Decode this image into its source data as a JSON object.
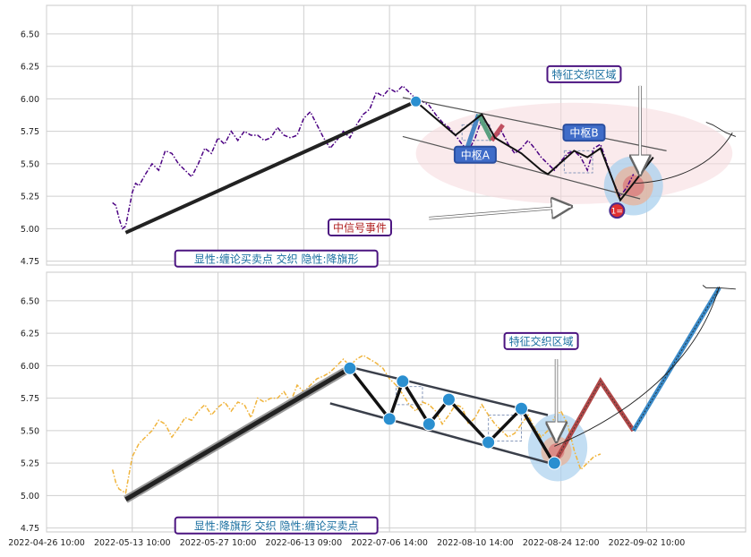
{
  "chart_data": [
    {
      "type": "line",
      "panel": "top",
      "ylim": [
        4.72,
        6.72
      ],
      "yticks": [
        "4.75",
        "5.00",
        "5.25",
        "5.50",
        "5.75",
        "6.00",
        "6.25",
        "6.50"
      ],
      "grid": true,
      "price_color": "#4b0082",
      "price_style": "dash-dot",
      "price": [
        [
          0.0,
          5.2
        ],
        [
          0.5,
          5.18
        ],
        [
          1.0,
          5.08
        ],
        [
          1.5,
          5.0
        ],
        [
          2.0,
          5.02
        ],
        [
          2.5,
          5.15
        ],
        [
          3.0,
          5.28
        ],
        [
          3.5,
          5.35
        ],
        [
          4.0,
          5.33
        ],
        [
          5.0,
          5.42
        ],
        [
          6.0,
          5.5
        ],
        [
          7.0,
          5.45
        ],
        [
          8.0,
          5.6
        ],
        [
          9.0,
          5.58
        ],
        [
          10.0,
          5.5
        ],
        [
          11.0,
          5.45
        ],
        [
          12.0,
          5.4
        ],
        [
          13.0,
          5.5
        ],
        [
          14.0,
          5.62
        ],
        [
          15.0,
          5.58
        ],
        [
          16.0,
          5.7
        ],
        [
          17.0,
          5.65
        ],
        [
          18.0,
          5.75
        ],
        [
          19.0,
          5.68
        ],
        [
          20.0,
          5.75
        ],
        [
          21.0,
          5.72
        ],
        [
          22.0,
          5.72
        ],
        [
          23.0,
          5.68
        ],
        [
          24.0,
          5.7
        ],
        [
          25.0,
          5.78
        ],
        [
          26.0,
          5.72
        ],
        [
          27.0,
          5.7
        ],
        [
          28.0,
          5.72
        ],
        [
          29.0,
          5.85
        ],
        [
          30.0,
          5.9
        ],
        [
          31.0,
          5.8
        ],
        [
          32.0,
          5.7
        ],
        [
          33.0,
          5.62
        ],
        [
          34.0,
          5.68
        ],
        [
          35.0,
          5.75
        ],
        [
          36.0,
          5.7
        ],
        [
          37.0,
          5.8
        ],
        [
          38.0,
          5.88
        ],
        [
          39.0,
          5.92
        ],
        [
          40.0,
          6.05
        ],
        [
          41.0,
          6.02
        ],
        [
          42.0,
          6.08
        ],
        [
          43.0,
          6.05
        ],
        [
          44.0,
          6.1
        ],
        [
          45.0,
          6.05
        ],
        [
          46.0,
          6.0
        ],
        [
          47.0,
          5.98
        ],
        [
          48.0,
          5.95
        ],
        [
          49.0,
          5.88
        ],
        [
          50.0,
          5.82
        ],
        [
          51.0,
          5.78
        ],
        [
          52.0,
          5.72
        ],
        [
          53.0,
          5.65
        ],
        [
          54.0,
          5.6
        ],
        [
          55.0,
          5.7
        ],
        [
          56.0,
          5.85
        ],
        [
          57.0,
          5.8
        ],
        [
          58.0,
          5.7
        ],
        [
          59.0,
          5.75
        ],
        [
          60.0,
          5.65
        ],
        [
          61.0,
          5.58
        ],
        [
          62.0,
          5.62
        ],
        [
          63.0,
          5.68
        ],
        [
          64.0,
          5.62
        ],
        [
          65.0,
          5.55
        ],
        [
          66.0,
          5.5
        ],
        [
          67.0,
          5.45
        ],
        [
          68.0,
          5.52
        ],
        [
          69.0,
          5.58
        ],
        [
          70.0,
          5.6
        ],
        [
          71.0,
          5.55
        ],
        [
          72.0,
          5.45
        ],
        [
          73.0,
          5.62
        ],
        [
          74.0,
          5.65
        ],
        [
          75.0,
          5.5
        ],
        [
          76.0,
          5.35
        ],
        [
          77.0,
          5.25
        ],
        [
          78.0,
          5.32
        ],
        [
          79.0,
          5.42
        ]
      ],
      "bi_points": [
        [
          2.0,
          4.97
        ],
        [
          46.0,
          5.98
        ]
      ],
      "bi_color": "#222222",
      "pen_points": [
        [
          53.5,
          5.58
        ],
        [
          55.5,
          5.88
        ],
        [
          57.5,
          5.68
        ],
        [
          59.2,
          5.8
        ]
      ],
      "bi2_points": [
        [
          46.0,
          5.98
        ],
        [
          52.0,
          5.72
        ],
        [
          56.0,
          5.88
        ],
        [
          58.0,
          5.7
        ],
        [
          62.0,
          5.58
        ],
        [
          65.0,
          5.45
        ],
        [
          66.0,
          5.42
        ],
        [
          70.0,
          5.6
        ],
        [
          72.0,
          5.55
        ],
        [
          74.0,
          5.62
        ],
        [
          77.0,
          5.22
        ],
        [
          79.0,
          5.35
        ],
        [
          82.0,
          5.55
        ]
      ],
      "zs_boxes": [
        {
          "x0": 53.0,
          "x1": 57.2,
          "y0": 5.68,
          "y1": 5.8
        },
        {
          "x0": 68.5,
          "x1": 72.8,
          "y0": 5.43,
          "y1": 5.6
        }
      ],
      "channel_upper": [
        [
          44.0,
          6.01
        ],
        [
          84.0,
          5.6
        ]
      ],
      "channel_lower": [
        [
          44.0,
          5.71
        ],
        [
          80.0,
          5.23
        ]
      ],
      "circle_points": [
        {
          "x": 46.0,
          "y": 5.98,
          "label": ""
        }
      ],
      "ellipse": {
        "cx": 70.0,
        "cy": 5.58,
        "rx": 24.0,
        "ry": 0.39
      },
      "focus": {
        "x": 79.0,
        "y": 5.33
      },
      "signal_point": {
        "x": 76.5,
        "y": 5.14,
        "label": "1="
      },
      "curve": [
        [
          79.0,
          5.35
        ],
        [
          85.0,
          5.36
        ],
        [
          91.0,
          5.48
        ],
        [
          94.0,
          5.74
        ]
      ],
      "curve_tick": [
        [
          90.0,
          5.82
        ],
        [
          91.0,
          5.8
        ],
        [
          93.0,
          5.74
        ],
        [
          94.5,
          5.71
        ]
      ],
      "labels": [
        {
          "text": "中枢A",
          "x": 55.0,
          "y": 5.57,
          "style": "box-blue"
        },
        {
          "text": "中枢B",
          "x": 71.5,
          "y": 5.74,
          "style": "box-blue"
        },
        {
          "text": "特征交织区域",
          "x": 71.5,
          "y": 6.19,
          "style": "box-purple"
        },
        {
          "text": "中信号事件",
          "x": 37.5,
          "y": 5.01,
          "style": "box-red"
        },
        {
          "text": "显性:缠论买卖点 交织 隐性:降旗形",
          "x": 9.5,
          "y": 4.77,
          "style": "box-purple-left"
        }
      ],
      "arrows": [
        {
          "from": [
            80.0,
            6.1
          ],
          "to": [
            80.0,
            5.42
          ]
        },
        {
          "from": [
            48.0,
            5.08
          ],
          "to": [
            69.5,
            5.17
          ]
        }
      ]
    },
    {
      "type": "line",
      "panel": "bottom",
      "ylim": [
        4.72,
        6.72
      ],
      "yticks": [
        "4.75",
        "5.00",
        "5.25",
        "5.50",
        "5.75",
        "6.00",
        "6.25",
        "6.50"
      ],
      "grid": true,
      "price_color": "#f0b43c",
      "price_style": "dash-dot",
      "price": [
        [
          0.0,
          5.2
        ],
        [
          0.5,
          5.1
        ],
        [
          1.0,
          5.05
        ],
        [
          2.0,
          5.02
        ],
        [
          3.0,
          5.3
        ],
        [
          4.0,
          5.4
        ],
        [
          5.0,
          5.45
        ],
        [
          6.0,
          5.5
        ],
        [
          7.0,
          5.58
        ],
        [
          8.0,
          5.55
        ],
        [
          9.0,
          5.45
        ],
        [
          10.0,
          5.52
        ],
        [
          11.0,
          5.6
        ],
        [
          12.0,
          5.58
        ],
        [
          13.0,
          5.65
        ],
        [
          14.0,
          5.7
        ],
        [
          15.0,
          5.62
        ],
        [
          16.0,
          5.68
        ],
        [
          17.0,
          5.72
        ],
        [
          18.0,
          5.65
        ],
        [
          19.0,
          5.72
        ],
        [
          20.0,
          5.7
        ],
        [
          21.0,
          5.6
        ],
        [
          22.0,
          5.75
        ],
        [
          23.0,
          5.72
        ],
        [
          24.0,
          5.75
        ],
        [
          25.0,
          5.75
        ],
        [
          26.0,
          5.8
        ],
        [
          27.0,
          5.72
        ],
        [
          28.0,
          5.85
        ],
        [
          29.0,
          5.8
        ],
        [
          30.0,
          5.85
        ],
        [
          31.0,
          5.9
        ],
        [
          32.0,
          5.92
        ],
        [
          33.0,
          5.95
        ],
        [
          34.0,
          6.0
        ],
        [
          35.0,
          6.05
        ],
        [
          36.0,
          6.0
        ],
        [
          37.0,
          6.05
        ],
        [
          38.0,
          6.08
        ],
        [
          39.0,
          6.05
        ],
        [
          40.0,
          6.02
        ],
        [
          41.0,
          5.98
        ],
        [
          42.0,
          5.9
        ],
        [
          43.0,
          5.85
        ],
        [
          44.0,
          5.78
        ],
        [
          45.0,
          5.7
        ],
        [
          46.0,
          5.65
        ],
        [
          47.0,
          5.72
        ],
        [
          48.0,
          5.7
        ],
        [
          49.0,
          5.65
        ],
        [
          50.0,
          5.55
        ],
        [
          51.0,
          5.62
        ],
        [
          52.0,
          5.7
        ],
        [
          53.0,
          5.68
        ],
        [
          54.0,
          5.55
        ],
        [
          55.0,
          5.6
        ],
        [
          56.0,
          5.7
        ],
        [
          57.0,
          5.62
        ],
        [
          58.0,
          5.55
        ],
        [
          59.0,
          5.5
        ],
        [
          60.0,
          5.45
        ],
        [
          61.0,
          5.48
        ],
        [
          62.0,
          5.55
        ],
        [
          63.0,
          5.62
        ],
        [
          64.0,
          5.52
        ],
        [
          65.0,
          5.45
        ],
        [
          66.0,
          5.5
        ],
        [
          67.0,
          5.6
        ],
        [
          68.0,
          5.65
        ],
        [
          69.0,
          5.55
        ],
        [
          70.0,
          5.35
        ],
        [
          71.0,
          5.2
        ],
        [
          72.0,
          5.25
        ],
        [
          73.0,
          5.3
        ],
        [
          74.0,
          5.32
        ]
      ],
      "bi_points": [
        [
          2.0,
          4.97
        ],
        [
          36.0,
          5.98
        ]
      ],
      "bi_color": "#222222",
      "bi2_points": [
        [
          36.0,
          5.98
        ],
        [
          42.0,
          5.59
        ],
        [
          44.0,
          5.88
        ],
        [
          48.0,
          5.55
        ],
        [
          51.0,
          5.74
        ],
        [
          57.0,
          5.41
        ],
        [
          62.0,
          5.67
        ],
        [
          67.0,
          5.24
        ]
      ],
      "zs_boxes": [
        {
          "x0": 43.0,
          "x1": 47.0,
          "y0": 5.7,
          "y1": 5.84
        },
        {
          "x0": 57.0,
          "x1": 62.0,
          "y0": 5.42,
          "y1": 5.62
        }
      ],
      "channel_upper": [
        [
          36.0,
          5.99
        ],
        [
          66.0,
          5.62
        ]
      ],
      "channel_lower": [
        [
          33.0,
          5.71
        ],
        [
          67.0,
          5.24
        ]
      ],
      "circle_points": [
        {
          "x": 36.0,
          "y": 5.98,
          "label": ""
        },
        {
          "x": 42.0,
          "y": 5.59,
          "label": ""
        },
        {
          "x": 44.0,
          "y": 5.88,
          "label": ""
        },
        {
          "x": 48.0,
          "y": 5.55,
          "label": ""
        },
        {
          "x": 51.0,
          "y": 5.74,
          "label": ""
        },
        {
          "x": 57.0,
          "y": 5.41,
          "label": ""
        },
        {
          "x": 62.0,
          "y": 5.67,
          "label": ""
        },
        {
          "x": 67.0,
          "y": 5.25,
          "label": ""
        }
      ],
      "ellipse": {
        "cx": 67.5,
        "cy": 5.37,
        "rx": 4.5,
        "ry": 0.26
      },
      "focus": {
        "x": 67.3,
        "y": 5.34
      },
      "projection_red": [
        [
          67.0,
          5.25
        ],
        [
          74.0,
          5.88
        ],
        [
          79.0,
          5.5
        ]
      ],
      "projection_blue": [
        [
          79.0,
          5.5
        ],
        [
          92.0,
          6.6
        ]
      ],
      "curve": [
        [
          67.0,
          5.38
        ],
        [
          75.0,
          5.55
        ],
        [
          88.0,
          5.92
        ],
        [
          92.0,
          6.61
        ]
      ],
      "curve_tick": [
        [
          89.5,
          6.62
        ],
        [
          90.0,
          6.6
        ],
        [
          92.0,
          6.6
        ],
        [
          94.5,
          6.59
        ]
      ],
      "labels": [
        {
          "text": "特征交织区域",
          "x": 65.0,
          "y": 6.19,
          "style": "box-purple"
        },
        {
          "text": "显性:降旗形 交织 隐性:缠论买卖点",
          "x": 9.5,
          "y": 4.77,
          "style": "box-purple-left"
        }
      ],
      "arrows": [
        {
          "from": [
            67.3,
            6.05
          ],
          "to": [
            67.3,
            5.42
          ]
        }
      ]
    }
  ],
  "xaxis": {
    "xlim": [
      -10,
      96
    ],
    "ticks": [
      {
        "x": -10,
        "label": "2022-04-26 10:00"
      },
      {
        "x": 3,
        "label": "2022-05-13 10:00"
      },
      {
        "x": 16,
        "label": "2022-05-27 10:00"
      },
      {
        "x": 29,
        "label": "2022-06-13 09:00"
      },
      {
        "x": 42,
        "label": "2022-07-06 14:00"
      },
      {
        "x": 55,
        "label": "2022-08-10 14:00"
      },
      {
        "x": 68,
        "label": "2022-08-24 12:00"
      },
      {
        "x": 81,
        "label": "2022-09-02 10:00"
      }
    ]
  }
}
